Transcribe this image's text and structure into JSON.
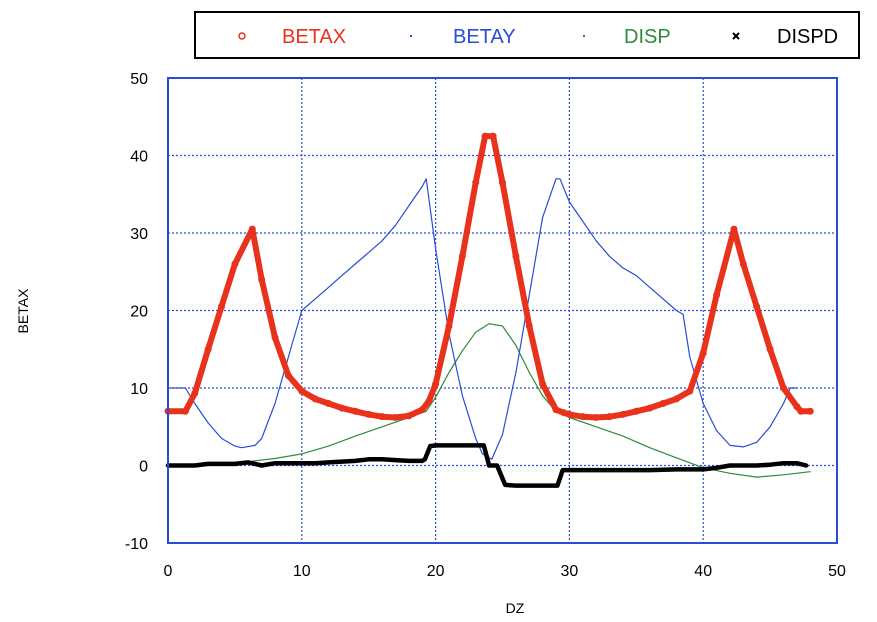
{
  "chart_data": {
    "type": "line",
    "title": "",
    "xlabel": "DZ",
    "ylabel": "BETAX",
    "xlim": [
      0,
      50
    ],
    "ylim": [
      -10,
      50
    ],
    "xticks": [
      0,
      10,
      20,
      30,
      40,
      50
    ],
    "yticks": [
      -10,
      0,
      10,
      20,
      30,
      40,
      50
    ],
    "x_tick_labels": [
      "0",
      "10",
      "20",
      "30",
      "40",
      "50"
    ],
    "y_tick_labels": [
      "-10",
      "0",
      "10",
      "20",
      "30",
      "40",
      "50"
    ],
    "grid": true,
    "legend_position": "top",
    "series": [
      {
        "name": "BETAX",
        "color": "#e8321c",
        "marker": "circle",
        "x": [
          0,
          1.3,
          2,
          3,
          4,
          5,
          6.3,
          7,
          8,
          9,
          10,
          11,
          12,
          13,
          14,
          15,
          16,
          17,
          18,
          19,
          19.5,
          20,
          21,
          22,
          23,
          23.7,
          24.3,
          25,
          26,
          27,
          28,
          29,
          29.6,
          30,
          31,
          32,
          33,
          34,
          35,
          36,
          37,
          38,
          39,
          40,
          41,
          42.3,
          43,
          44,
          45,
          46,
          47,
          47.3,
          48
        ],
        "y": [
          7,
          7,
          9.3,
          15,
          20.5,
          26,
          30.5,
          24,
          16.5,
          11.6,
          9.6,
          8.6,
          8,
          7.4,
          7,
          6.6,
          6.3,
          6.2,
          6.4,
          7.2,
          8.3,
          10.5,
          18,
          27,
          36.5,
          42.5,
          42.5,
          36.5,
          27,
          18,
          10.5,
          7.2,
          6.8,
          6.6,
          6.3,
          6.2,
          6.3,
          6.6,
          7,
          7.4,
          8,
          8.6,
          9.6,
          14.5,
          22,
          30.5,
          26,
          20.5,
          15,
          10,
          7.6,
          7,
          7
        ]
      },
      {
        "name": "BETAY",
        "color": "#2a4cd6",
        "marker": "dot",
        "x": [
          0,
          1.3,
          2,
          3,
          4,
          5,
          5.5,
          6.5,
          7,
          8,
          9,
          10,
          11,
          12,
          13,
          14,
          15,
          16,
          17,
          18,
          19,
          19.3,
          20,
          21,
          22,
          23,
          23.5,
          24.2,
          25,
          26,
          27,
          28,
          29,
          29.3,
          30,
          31,
          32,
          33,
          34,
          35,
          36,
          37,
          38,
          38.5,
          39,
          40,
          41,
          42,
          43,
          44,
          45,
          46,
          46.5,
          47
        ],
        "y": [
          10,
          10,
          8,
          5.5,
          3.5,
          2.5,
          2.3,
          2.6,
          3.5,
          8,
          14,
          20,
          21.5,
          23,
          24.5,
          26,
          27.5,
          29,
          31,
          33.5,
          36,
          37,
          28,
          17,
          9,
          3.5,
          1.5,
          0.8,
          4,
          12,
          22,
          32,
          37,
          37,
          34,
          31.5,
          29,
          27,
          25.5,
          24.5,
          23,
          21.5,
          20,
          19.5,
          14,
          8,
          4.5,
          2.6,
          2.4,
          3,
          5,
          8,
          10,
          10
        ]
      },
      {
        "name": "DISP",
        "color": "#2e8b3a",
        "marker": "dot",
        "x": [
          0,
          2,
          4,
          6,
          8,
          10,
          12,
          14,
          16,
          18,
          19.3,
          20,
          21,
          22,
          23,
          24,
          25,
          26,
          27,
          28,
          29,
          30,
          32,
          34,
          36,
          38,
          40,
          42,
          44,
          46,
          48
        ],
        "y": [
          0,
          0,
          0.3,
          0.5,
          0.9,
          1.5,
          2.5,
          3.8,
          5,
          6.2,
          7,
          8.8,
          12,
          14.8,
          17.2,
          18.3,
          18,
          15.5,
          12,
          9,
          7,
          6.2,
          5,
          3.8,
          2.3,
          1,
          -0.3,
          -1,
          -1.5,
          -1.2,
          -0.8
        ]
      },
      {
        "name": "DISPD",
        "color": "#000000",
        "marker": "x",
        "x": [
          0,
          2,
          3,
          5,
          6,
          7,
          8,
          10,
          11,
          12,
          13,
          14,
          15,
          16,
          17,
          18,
          19,
          19.2,
          19.6,
          20,
          23.6,
          24,
          24.6,
          25.2,
          26,
          29.1,
          29.5,
          30,
          32,
          34,
          36,
          38,
          40,
          41,
          42,
          43,
          44,
          45,
          46,
          47,
          47.7
        ],
        "y": [
          0,
          0,
          0.2,
          0.2,
          0.4,
          0,
          0.3,
          0.3,
          0.3,
          0.4,
          0.5,
          0.6,
          0.8,
          0.8,
          0.7,
          0.6,
          0.6,
          0.8,
          2.5,
          2.6,
          2.6,
          0,
          0,
          -2.5,
          -2.6,
          -2.6,
          -0.6,
          -0.6,
          -0.6,
          -0.6,
          -0.6,
          -0.5,
          -0.5,
          -0.3,
          0,
          0,
          0,
          0.1,
          0.3,
          0.3,
          0
        ]
      }
    ]
  }
}
